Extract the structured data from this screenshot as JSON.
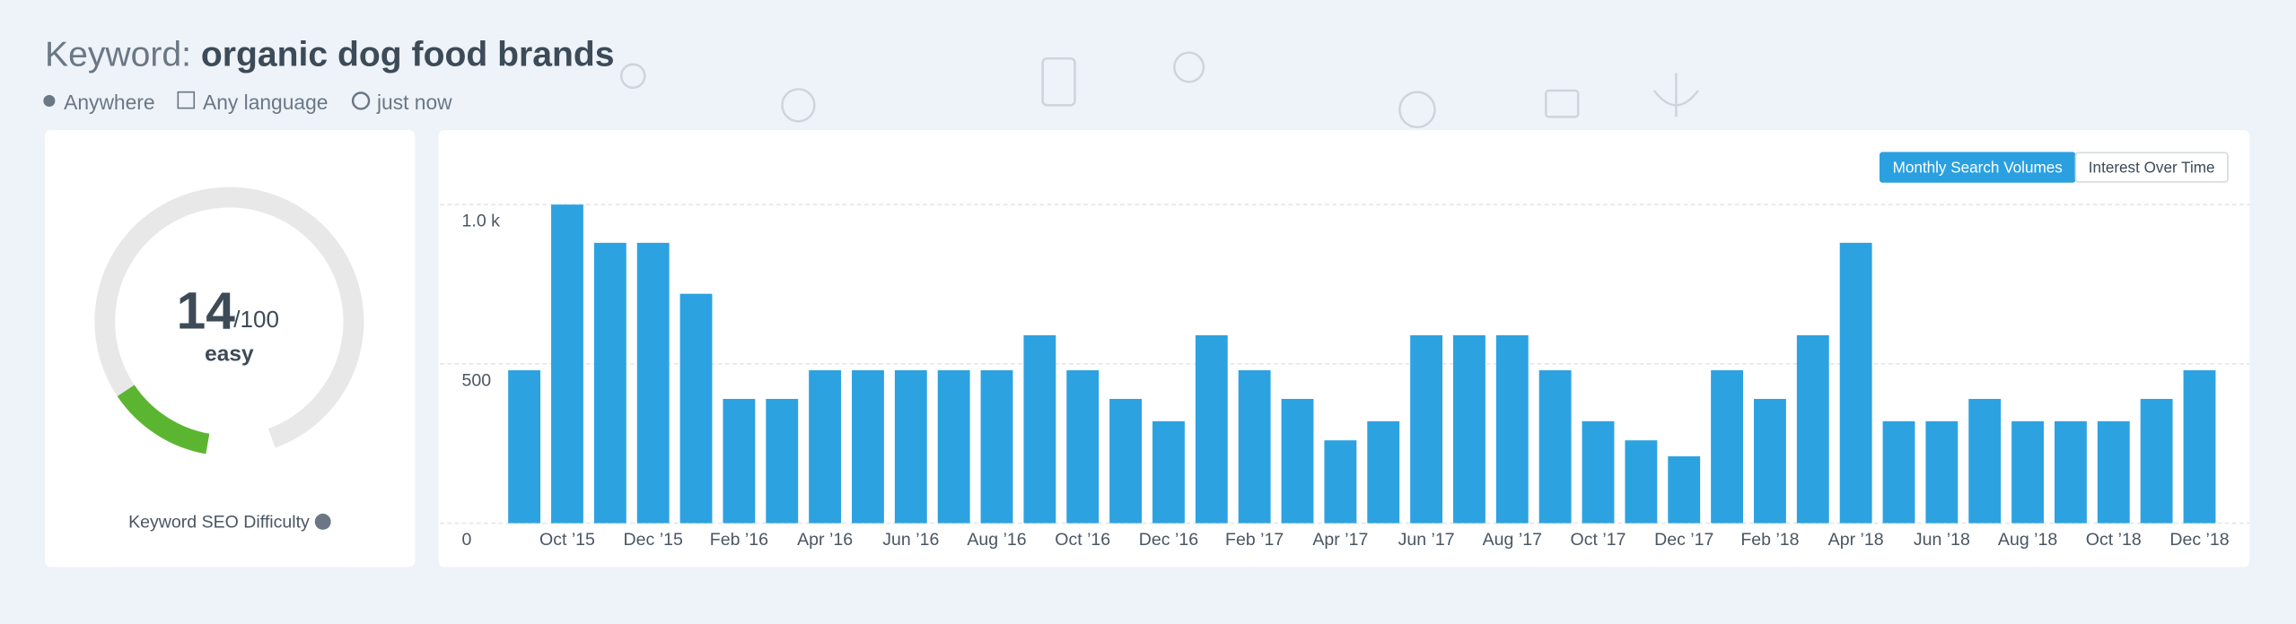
{
  "header": {
    "prefix": "Keyword:",
    "keyword": "organic dog food brands",
    "location": "Anywhere",
    "language": "Any language",
    "time": "just now"
  },
  "difficulty": {
    "score": 14,
    "suffix": "/100",
    "level": "easy",
    "label": "Keyword SEO Difficulty",
    "color": "#5cb531"
  },
  "tabs": [
    "Monthly Search Volumes",
    "Interest Over Time"
  ],
  "chart_data": {
    "type": "bar",
    "color": "#2da2e1",
    "grid": true,
    "categories": [
      null,
      "Oct ’15",
      null,
      "Dec ’15",
      null,
      "Feb ’16",
      null,
      "Apr ’16",
      null,
      "Jun ’16",
      null,
      "Aug ’16",
      null,
      "Oct ’16",
      null,
      "Dec ’16",
      null,
      "Feb ’17",
      null,
      "Apr ’17",
      null,
      "Jun ’17",
      null,
      "Aug ’17",
      null,
      "Oct ’17",
      null,
      "Dec ’17",
      null,
      "Feb ’18",
      null,
      "Apr ’18",
      null,
      "Jun ’18",
      null,
      "Aug ’18",
      null,
      "Oct ’18",
      null,
      "Dec ’18"
    ],
    "values": [
      480,
      1000,
      880,
      880,
      720,
      390,
      390,
      480,
      480,
      480,
      480,
      480,
      590,
      480,
      390,
      320,
      590,
      480,
      390,
      260,
      320,
      590,
      590,
      590,
      480,
      320,
      260,
      210,
      480,
      390,
      590,
      880,
      320,
      320,
      390,
      320,
      320,
      320,
      390,
      480
    ],
    "ylim": [
      0,
      1000
    ],
    "yticks": [
      0,
      500,
      {
        "value": 1000,
        "label": "1.0 k"
      }
    ]
  }
}
